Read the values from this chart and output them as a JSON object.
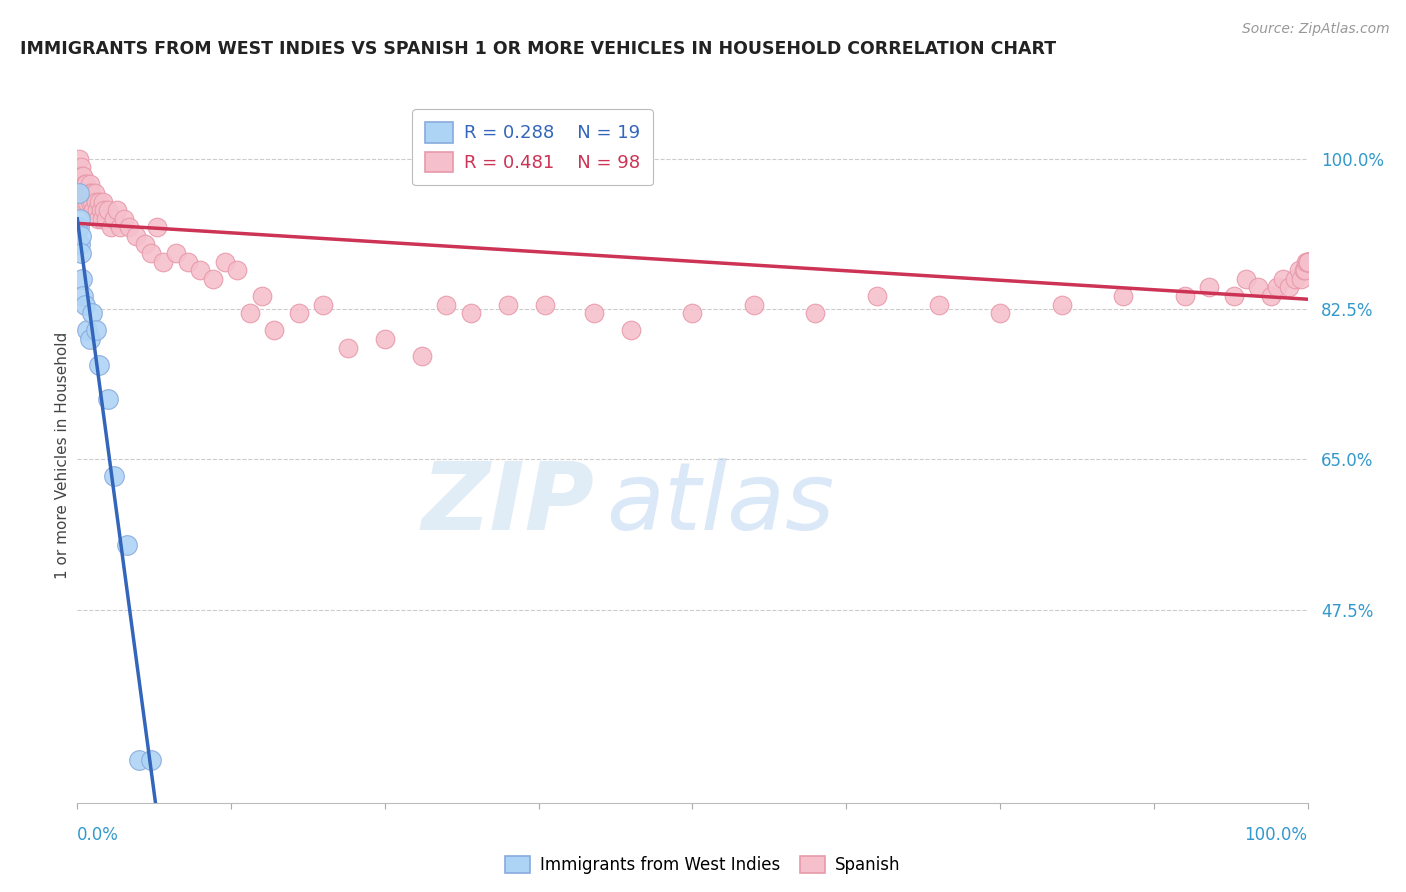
{
  "title": "IMMIGRANTS FROM WEST INDIES VS SPANISH 1 OR MORE VEHICLES IN HOUSEHOLD CORRELATION CHART",
  "source": "Source: ZipAtlas.com",
  "ylabel": "1 or more Vehicles in Household",
  "xmin": 0.0,
  "xmax": 1.0,
  "ymin": 0.25,
  "ymax": 1.06,
  "yticks": [
    0.475,
    0.65,
    0.825,
    1.0
  ],
  "ytick_labels": [
    "47.5%",
    "65.0%",
    "82.5%",
    "100.0%"
  ],
  "series1_name": "Immigrants from West Indies",
  "series1_color": "#aed4f5",
  "series1_edge": "#88aadd",
  "series1_line_color": "#3366bb",
  "series1_R": 0.288,
  "series1_N": 19,
  "series2_name": "Spanish",
  "series2_color": "#f5c0cc",
  "series2_edge": "#e899aa",
  "series2_line_color": "#cc3355",
  "series2_R": 0.481,
  "series2_N": 98,
  "watermark_zip": "ZIP",
  "watermark_atlas": "atlas",
  "background_color": "#ffffff",
  "grid_color": "#cccccc",
  "series1_x": [
    0.001,
    0.001,
    0.002,
    0.002,
    0.003,
    0.003,
    0.004,
    0.005,
    0.006,
    0.008,
    0.01,
    0.012,
    0.015,
    0.018,
    0.025,
    0.03,
    0.04,
    0.05,
    0.06
  ],
  "series1_y": [
    0.92,
    0.96,
    0.93,
    0.9,
    0.91,
    0.89,
    0.86,
    0.84,
    0.83,
    0.8,
    0.79,
    0.82,
    0.8,
    0.76,
    0.72,
    0.63,
    0.55,
    0.3,
    0.3
  ],
  "series2_x": [
    0.001,
    0.001,
    0.002,
    0.002,
    0.002,
    0.003,
    0.003,
    0.003,
    0.004,
    0.004,
    0.004,
    0.005,
    0.005,
    0.006,
    0.006,
    0.006,
    0.007,
    0.007,
    0.008,
    0.008,
    0.009,
    0.01,
    0.01,
    0.01,
    0.011,
    0.012,
    0.013,
    0.014,
    0.015,
    0.016,
    0.017,
    0.018,
    0.019,
    0.02,
    0.021,
    0.022,
    0.023,
    0.025,
    0.027,
    0.03,
    0.032,
    0.035,
    0.038,
    0.042,
    0.048,
    0.055,
    0.06,
    0.065,
    0.07,
    0.08,
    0.09,
    0.1,
    0.11,
    0.12,
    0.13,
    0.14,
    0.15,
    0.16,
    0.18,
    0.2,
    0.22,
    0.25,
    0.28,
    0.3,
    0.32,
    0.35,
    0.38,
    0.42,
    0.45,
    0.5,
    0.55,
    0.6,
    0.65,
    0.7,
    0.75,
    0.8,
    0.85,
    0.9,
    0.92,
    0.94,
    0.95,
    0.96,
    0.97,
    0.975,
    0.98,
    0.985,
    0.99,
    0.993,
    0.995,
    0.997,
    0.998,
    0.999,
    1.0,
    1.0,
    1.0,
    1.0,
    1.0,
    1.0
  ],
  "series2_y": [
    1.0,
    0.98,
    0.97,
    0.96,
    0.95,
    0.99,
    0.97,
    0.96,
    0.98,
    0.97,
    0.96,
    0.98,
    0.96,
    0.97,
    0.96,
    0.95,
    0.97,
    0.96,
    0.96,
    0.95,
    0.96,
    0.97,
    0.96,
    0.95,
    0.96,
    0.95,
    0.94,
    0.96,
    0.95,
    0.94,
    0.93,
    0.95,
    0.94,
    0.93,
    0.95,
    0.94,
    0.93,
    0.94,
    0.92,
    0.93,
    0.94,
    0.92,
    0.93,
    0.92,
    0.91,
    0.9,
    0.89,
    0.92,
    0.88,
    0.89,
    0.88,
    0.87,
    0.86,
    0.88,
    0.87,
    0.82,
    0.84,
    0.8,
    0.82,
    0.83,
    0.78,
    0.79,
    0.77,
    0.83,
    0.82,
    0.83,
    0.83,
    0.82,
    0.8,
    0.82,
    0.83,
    0.82,
    0.84,
    0.83,
    0.82,
    0.83,
    0.84,
    0.84,
    0.85,
    0.84,
    0.86,
    0.85,
    0.84,
    0.85,
    0.86,
    0.85,
    0.86,
    0.87,
    0.86,
    0.87,
    0.87,
    0.88,
    0.88,
    0.88,
    0.88,
    0.88,
    0.88,
    0.88
  ]
}
